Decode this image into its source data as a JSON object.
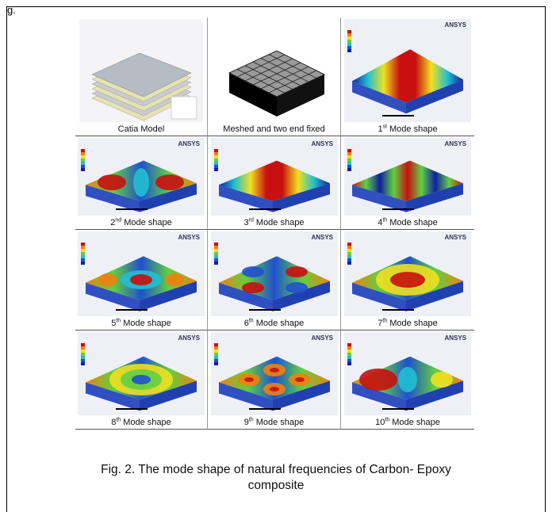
{
  "corner_text": "g.",
  "ansys_label": "ANSYS",
  "cells": [
    {
      "main": "Catia Model"
    },
    {
      "main": "Meshed and two end fixed"
    },
    {
      "main": "1",
      "sup": "st",
      "tail": "Mode shape"
    },
    {
      "main": "2",
      "sup": "nd",
      "tail": "Mode shape"
    },
    {
      "main": "3",
      "sup": "rd",
      "tail": "Mode shape"
    },
    {
      "main": "4",
      "sup": "th",
      "tail": "Mode shape"
    },
    {
      "main": "5",
      "sup": "th",
      "tail": "Mode shape"
    },
    {
      "main": "6",
      "sup": "th",
      "tail": "Mode shape"
    },
    {
      "main": "7",
      "sup": "th",
      "tail": "Mode shape"
    },
    {
      "main": "8",
      "sup": "th",
      "tail": "Mode shape"
    },
    {
      "main": "9",
      "sup": "th",
      "tail": "Mode shape"
    },
    {
      "main": "10",
      "sup": "th",
      "tail": "Mode shape"
    }
  ],
  "figure_caption": {
    "line1": "Fig. 2. The mode shape of natural frequencies of Carbon- Epoxy",
    "line2": "composite"
  }
}
